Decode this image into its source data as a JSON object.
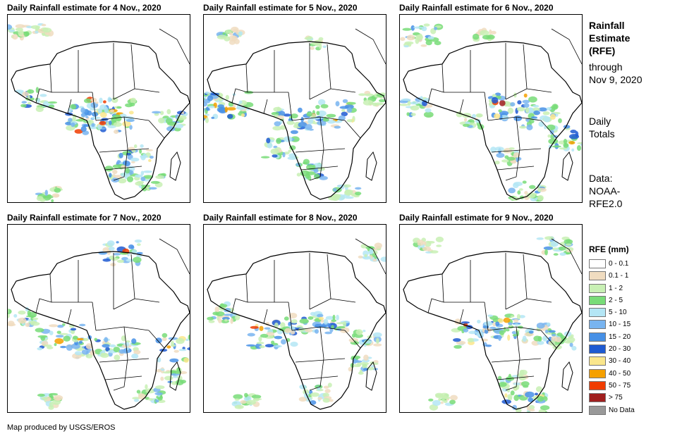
{
  "panels": [
    {
      "title": "Daily Rainfall estimate for 4 Nov., 2020"
    },
    {
      "title": "Daily Rainfall estimate for 5 Nov., 2020"
    },
    {
      "title": "Daily Rainfall estimate for 6 Nov., 2020"
    },
    {
      "title": "Daily Rainfall estimate for 7 Nov., 2020"
    },
    {
      "title": "Daily Rainfall estimate for 8 Nov., 2020"
    },
    {
      "title": "Daily Rainfall estimate for 9 Nov., 2020"
    }
  ],
  "sidebar": {
    "title_lines": [
      "Rainfall",
      "Estimate",
      "(RFE)"
    ],
    "through_lines": [
      "through",
      "Nov 9, 2020"
    ],
    "totals_lines": [
      "Daily",
      "Totals"
    ],
    "data_lines": [
      "Data:",
      "NOAA-",
      "RFE2.0"
    ]
  },
  "legend": {
    "title": "RFE (mm)",
    "items": [
      {
        "label": "0 - 0.1",
        "color": "#ffffff"
      },
      {
        "label": "0.1 - 1",
        "color": "#f0dcc0"
      },
      {
        "label": "1 - 2",
        "color": "#c8f0b4"
      },
      {
        "label": "2 - 5",
        "color": "#78dc78"
      },
      {
        "label": "5 - 10",
        "color": "#b4e6f5"
      },
      {
        "label": "10 - 15",
        "color": "#78b4f0"
      },
      {
        "label": "15 - 20",
        "color": "#4690e6"
      },
      {
        "label": "20 - 30",
        "color": "#1e5ad2"
      },
      {
        "label": "30 - 40",
        "color": "#fae68c"
      },
      {
        "label": "40 - 50",
        "color": "#f5a000"
      },
      {
        "label": "50 - 75",
        "color": "#f03c00"
      },
      {
        "label": "> 75",
        "color": "#a01e1e"
      },
      {
        "label": "No Data",
        "color": "#999999"
      }
    ]
  },
  "credit": "Map produced by USGS/EROS"
}
